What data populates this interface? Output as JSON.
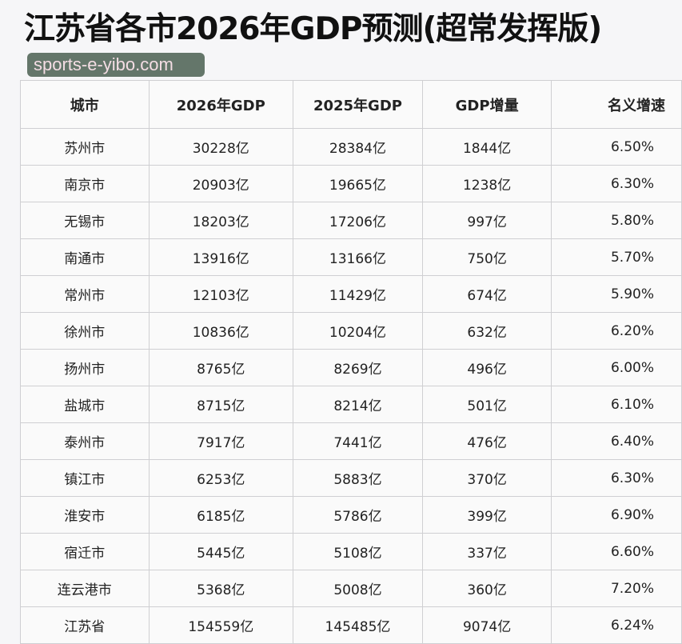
{
  "title": "江苏省各市2026年GDP预测(超常发挥版)",
  "watermark": "sports-e-yibo.com",
  "table": {
    "headers": [
      "城市",
      "2026年GDP",
      "2025年GDP",
      "GDP增量",
      "名义增速"
    ],
    "rows": [
      [
        "苏州市",
        "30228亿",
        "28384亿",
        "1844亿",
        "6.50%"
      ],
      [
        "南京市",
        "20903亿",
        "19665亿",
        "1238亿",
        "6.30%"
      ],
      [
        "无锡市",
        "18203亿",
        "17206亿",
        "997亿",
        "5.80%"
      ],
      [
        "南通市",
        "13916亿",
        "13166亿",
        "750亿",
        "5.70%"
      ],
      [
        "常州市",
        "12103亿",
        "11429亿",
        "674亿",
        "5.90%"
      ],
      [
        "徐州市",
        "10836亿",
        "10204亿",
        "632亿",
        "6.20%"
      ],
      [
        "扬州市",
        "8765亿",
        "8269亿",
        "496亿",
        "6.00%"
      ],
      [
        "盐城市",
        "8715亿",
        "8214亿",
        "501亿",
        "6.10%"
      ],
      [
        "泰州市",
        "7917亿",
        "7441亿",
        "476亿",
        "6.40%"
      ],
      [
        "镇江市",
        "6253亿",
        "5883亿",
        "370亿",
        "6.30%"
      ],
      [
        "淮安市",
        "6185亿",
        "5786亿",
        "399亿",
        "6.90%"
      ],
      [
        "宿迁市",
        "5445亿",
        "5108亿",
        "337亿",
        "6.60%"
      ],
      [
        "连云港市",
        "5368亿",
        "5008亿",
        "360亿",
        "7.20%"
      ],
      [
        "江苏省",
        "154559亿",
        "145485亿",
        "9074亿",
        "6.24%"
      ]
    ]
  }
}
